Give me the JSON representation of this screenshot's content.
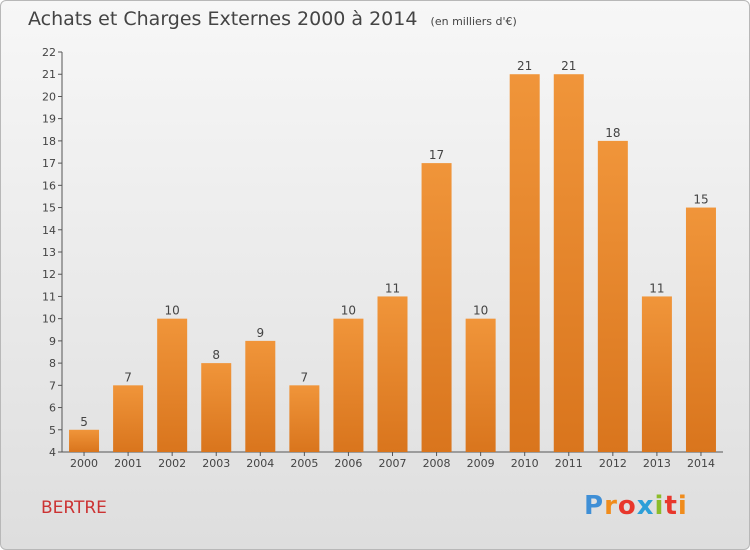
{
  "header": {
    "title": "Achats et Charges Externes 2000 à 2014",
    "unit": "(en milliers d'€)"
  },
  "footer": {
    "town": "BERTRE",
    "brand_letters": [
      "P",
      "r",
      "o",
      "x",
      "i",
      "t",
      "i"
    ],
    "brand_colors": [
      "#3f8fd6",
      "#f08c1c",
      "#e8372c",
      "#2d9fd8",
      "#8cbc2a",
      "#e8372c",
      "#f08c1c"
    ]
  },
  "chart_data": {
    "type": "bar",
    "title": "Achats et Charges Externes 2000 à 2014",
    "subtitle": "(en milliers d'€)",
    "categories": [
      "2000",
      "2001",
      "2002",
      "2003",
      "2004",
      "2005",
      "2006",
      "2007",
      "2008",
      "2009",
      "2010",
      "2011",
      "2012",
      "2013",
      "2014"
    ],
    "values": [
      5,
      7,
      10,
      8,
      9,
      7,
      10,
      11,
      17,
      10,
      21,
      21,
      18,
      11,
      15
    ],
    "ylim": [
      4,
      22
    ],
    "yticks": [
      4,
      5,
      6,
      7,
      8,
      9,
      10,
      11,
      12,
      13,
      14,
      15,
      16,
      17,
      18,
      19,
      20,
      21,
      22
    ],
    "grid": false,
    "legend": "none",
    "bar_color": "#f0953a",
    "bar_color_dark": "#d9751d"
  }
}
